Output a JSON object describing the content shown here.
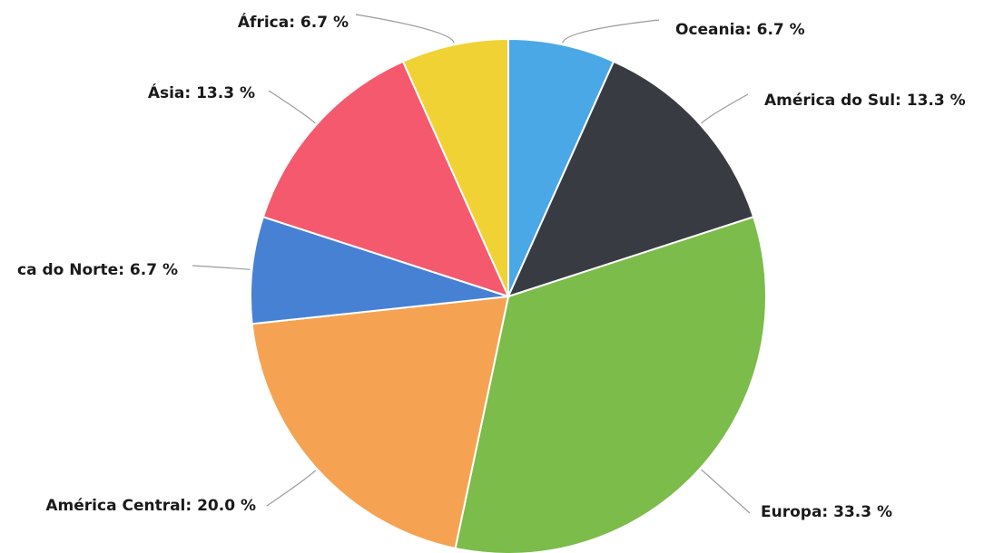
{
  "chart_data": {
    "type": "pie",
    "slices": [
      {
        "name": "Oceania",
        "value": 6.7,
        "label": "Oceania: 6.7 %",
        "color": "#4aa8e6"
      },
      {
        "name": "América do Sul",
        "value": 13.3,
        "label": "América do Sul: 13.3 %",
        "color": "#383c42"
      },
      {
        "name": "Europa",
        "value": 33.3,
        "label": "Europa: 33.3 %",
        "color": "#7cbc4a"
      },
      {
        "name": "América Central",
        "value": 20.0,
        "label": "América Central: 20.0 %",
        "color": "#f5a352"
      },
      {
        "name": "América do Norte",
        "value": 6.7,
        "label": "ca do Norte: 6.7 %",
        "color": "#4681d4"
      },
      {
        "name": "Ásia",
        "value": 13.3,
        "label": "Ásia: 13.3 %",
        "color": "#f5596d"
      },
      {
        "name": "África",
        "value": 6.7,
        "label": "África: 6.7 %",
        "color": "#f0d234"
      }
    ]
  }
}
